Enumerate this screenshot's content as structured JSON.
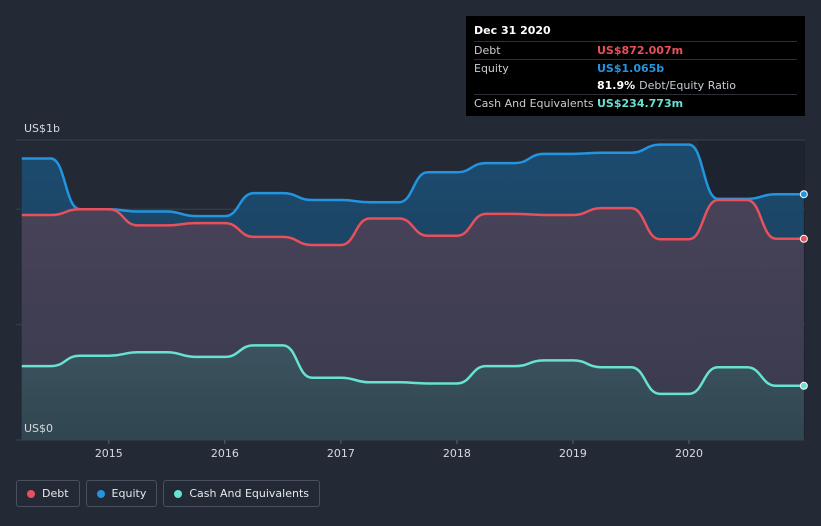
{
  "tooltip": {
    "date": "Dec 31 2020",
    "rows": [
      {
        "label": "Debt",
        "value": "US$872.007m",
        "color": "#e8505b"
      },
      {
        "label": "Equity",
        "value": "US$1.065b",
        "color": "#2394df"
      },
      {
        "label": "",
        "value": "81.9%",
        "extra": "Debt/Equity Ratio",
        "color": "#ffffff"
      },
      {
        "label": "Cash And Equivalents",
        "value": "US$234.773m",
        "color": "#67e2d3"
      }
    ]
  },
  "legend": [
    {
      "label": "Debt",
      "color": "#e8505b"
    },
    {
      "label": "Equity",
      "color": "#2394df"
    },
    {
      "label": "Cash And Equivalents",
      "color": "#67e2d3"
    }
  ],
  "chart_data": {
    "type": "area",
    "y_top_label": "US$1b",
    "y_bottom_label": "US$0",
    "ylim": [
      0,
      1.3
    ],
    "xlim": [
      2014.2,
      2021.0
    ],
    "x_ticks": [
      "2015",
      "2016",
      "2017",
      "2018",
      "2019",
      "2020"
    ],
    "x_tick_values": [
      2015,
      2016,
      2017,
      2018,
      2019,
      2020
    ],
    "grid": true,
    "series": [
      {
        "name": "Equity",
        "color": "#2394df",
        "points": [
          [
            2014.25,
            1.22
          ],
          [
            2014.5,
            1.22
          ],
          [
            2014.75,
            1.0
          ],
          [
            2015.0,
            1.0
          ],
          [
            2015.25,
            0.99
          ],
          [
            2015.5,
            0.99
          ],
          [
            2015.75,
            0.97
          ],
          [
            2016.0,
            0.97
          ],
          [
            2016.25,
            1.07
          ],
          [
            2016.5,
            1.07
          ],
          [
            2016.75,
            1.04
          ],
          [
            2017.0,
            1.04
          ],
          [
            2017.25,
            1.03
          ],
          [
            2017.5,
            1.03
          ],
          [
            2017.75,
            1.16
          ],
          [
            2018.0,
            1.16
          ],
          [
            2018.25,
            1.2
          ],
          [
            2018.5,
            1.2
          ],
          [
            2018.75,
            1.24
          ],
          [
            2019.0,
            1.24
          ],
          [
            2019.25,
            1.245
          ],
          [
            2019.5,
            1.245
          ],
          [
            2019.75,
            1.28
          ],
          [
            2020.0,
            1.28
          ],
          [
            2020.25,
            1.045
          ],
          [
            2020.5,
            1.045
          ],
          [
            2020.75,
            1.065
          ],
          [
            2020.99,
            1.065
          ]
        ]
      },
      {
        "name": "Debt",
        "color": "#e8505b",
        "points": [
          [
            2014.25,
            0.975
          ],
          [
            2014.5,
            0.975
          ],
          [
            2014.75,
            1.0
          ],
          [
            2015.0,
            1.0
          ],
          [
            2015.25,
            0.93
          ],
          [
            2015.5,
            0.93
          ],
          [
            2015.75,
            0.94
          ],
          [
            2016.0,
            0.94
          ],
          [
            2016.25,
            0.88
          ],
          [
            2016.5,
            0.88
          ],
          [
            2016.75,
            0.845
          ],
          [
            2017.0,
            0.845
          ],
          [
            2017.25,
            0.96
          ],
          [
            2017.5,
            0.96
          ],
          [
            2017.75,
            0.885
          ],
          [
            2018.0,
            0.885
          ],
          [
            2018.25,
            0.98
          ],
          [
            2018.5,
            0.98
          ],
          [
            2018.75,
            0.975
          ],
          [
            2019.0,
            0.975
          ],
          [
            2019.25,
            1.005
          ],
          [
            2019.5,
            1.005
          ],
          [
            2019.75,
            0.87
          ],
          [
            2020.0,
            0.87
          ],
          [
            2020.25,
            1.04
          ],
          [
            2020.5,
            1.04
          ],
          [
            2020.75,
            0.872
          ],
          [
            2020.99,
            0.872
          ]
        ]
      },
      {
        "name": "Cash And Equivalents",
        "color": "#67e2d3",
        "points": [
          [
            2014.25,
            0.32
          ],
          [
            2014.5,
            0.32
          ],
          [
            2014.75,
            0.365
          ],
          [
            2015.0,
            0.365
          ],
          [
            2015.25,
            0.38
          ],
          [
            2015.5,
            0.38
          ],
          [
            2015.75,
            0.36
          ],
          [
            2016.0,
            0.36
          ],
          [
            2016.25,
            0.41
          ],
          [
            2016.5,
            0.41
          ],
          [
            2016.75,
            0.27
          ],
          [
            2017.0,
            0.27
          ],
          [
            2017.25,
            0.25
          ],
          [
            2017.5,
            0.25
          ],
          [
            2017.75,
            0.245
          ],
          [
            2018.0,
            0.245
          ],
          [
            2018.25,
            0.32
          ],
          [
            2018.5,
            0.32
          ],
          [
            2018.75,
            0.345
          ],
          [
            2019.0,
            0.345
          ],
          [
            2019.25,
            0.315
          ],
          [
            2019.5,
            0.315
          ],
          [
            2019.75,
            0.2
          ],
          [
            2020.0,
            0.2
          ],
          [
            2020.25,
            0.315
          ],
          [
            2020.5,
            0.315
          ],
          [
            2020.75,
            0.235
          ],
          [
            2020.99,
            0.235
          ]
        ]
      }
    ]
  }
}
